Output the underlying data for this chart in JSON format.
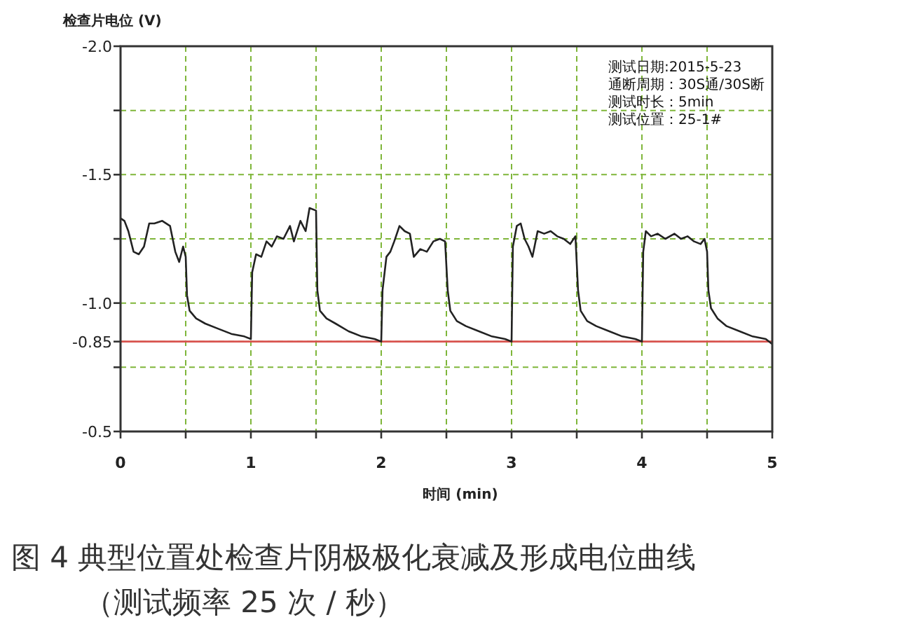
{
  "chart_data": {
    "type": "line",
    "title": "图 4 典型位置处检查片阴极极化衰减及形成电位曲线",
    "subtitle": "（测试频率 25 次 / 秒）",
    "xlabel": "时间 (min)",
    "ylabel": "检查片电位 (V)",
    "annotations": [
      "测试日期:2015-5-23",
      "通断周期：30S通/30S断",
      "测试时长：5min",
      "测试位置：25-1#"
    ],
    "xlim": [
      0,
      5
    ],
    "ylim": [
      -0.5,
      -2.0
    ],
    "xticks": [
      0,
      {
        "value": 0.5,
        "label": null
      },
      1,
      {
        "value": 1.5,
        "label": null
      },
      2,
      {
        "value": 2.5,
        "label": null
      },
      3,
      {
        "value": 3.5,
        "label": null
      },
      4,
      {
        "value": 4.5,
        "label": null
      },
      5
    ],
    "yticks": [
      {
        "value": -2.0,
        "label": "-2.0"
      },
      {
        "value": -1.75,
        "label": null
      },
      {
        "value": -1.5,
        "label": "-1.5"
      },
      {
        "value": -1.25,
        "label": null
      },
      {
        "value": -1.0,
        "label": "-1.0"
      },
      -0.85,
      {
        "value": -0.75,
        "label": null
      },
      {
        "value": -0.5,
        "label": "-0.5"
      }
    ],
    "grid": true,
    "ref_lines": [
      {
        "axis": "y",
        "value": -0.85,
        "color": "#d9534f",
        "line_style": "solid"
      }
    ],
    "series": [
      {
        "color": "#222222",
        "x": [
          0,
          0.03,
          0.06,
          0.1,
          0.14,
          0.18,
          0.22,
          0.26,
          0.32,
          0.38,
          0.42,
          0.45,
          0.48,
          0.5,
          0.51,
          0.53,
          0.58,
          0.65,
          0.75,
          0.85,
          0.95,
          1.0,
          1.01,
          1.04,
          1.08,
          1.12,
          1.16,
          1.2,
          1.25,
          1.3,
          1.33,
          1.38,
          1.42,
          1.45,
          1.5,
          1.51,
          1.53,
          1.58,
          1.65,
          1.75,
          1.85,
          1.95,
          2.0,
          2.01,
          2.04,
          2.07,
          2.1,
          2.14,
          2.18,
          2.22,
          2.25,
          2.3,
          2.35,
          2.4,
          2.45,
          2.49,
          2.51,
          2.53,
          2.58,
          2.65,
          2.75,
          2.85,
          2.95,
          3.0,
          3.01,
          3.04,
          3.07,
          3.1,
          3.13,
          3.16,
          3.2,
          3.25,
          3.3,
          3.35,
          3.4,
          3.45,
          3.49,
          3.51,
          3.53,
          3.58,
          3.65,
          3.75,
          3.85,
          3.95,
          4.0,
          4.01,
          4.03,
          4.07,
          4.12,
          4.18,
          4.25,
          4.3,
          4.35,
          4.4,
          4.45,
          4.48,
          4.5,
          4.51,
          4.53,
          4.58,
          4.65,
          4.75,
          4.85,
          4.95,
          5.0
        ],
        "values": [
          -1.33,
          -1.32,
          -1.28,
          -1.2,
          -1.19,
          -1.22,
          -1.31,
          -1.31,
          -1.32,
          -1.3,
          -1.2,
          -1.16,
          -1.22,
          -1.18,
          -1.03,
          -0.97,
          -0.94,
          -0.92,
          -0.9,
          -0.88,
          -0.87,
          -0.86,
          -1.12,
          -1.19,
          -1.18,
          -1.24,
          -1.22,
          -1.26,
          -1.25,
          -1.3,
          -1.24,
          -1.32,
          -1.28,
          -1.37,
          -1.36,
          -1.05,
          -0.97,
          -0.94,
          -0.92,
          -0.89,
          -0.87,
          -0.86,
          -0.85,
          -1.05,
          -1.18,
          -1.2,
          -1.24,
          -1.3,
          -1.28,
          -1.27,
          -1.18,
          -1.21,
          -1.2,
          -1.24,
          -1.25,
          -1.24,
          -1.05,
          -0.97,
          -0.93,
          -0.91,
          -0.89,
          -0.87,
          -0.86,
          -0.85,
          -1.22,
          -1.3,
          -1.31,
          -1.25,
          -1.22,
          -1.18,
          -1.28,
          -1.27,
          -1.28,
          -1.26,
          -1.25,
          -1.23,
          -1.26,
          -1.05,
          -0.97,
          -0.93,
          -0.91,
          -0.89,
          -0.87,
          -0.86,
          -0.85,
          -1.2,
          -1.28,
          -1.26,
          -1.27,
          -1.25,
          -1.27,
          -1.25,
          -1.26,
          -1.24,
          -1.23,
          -1.25,
          -1.2,
          -1.05,
          -0.98,
          -0.94,
          -0.91,
          -0.89,
          -0.87,
          -0.86,
          -0.84
        ]
      }
    ]
  }
}
